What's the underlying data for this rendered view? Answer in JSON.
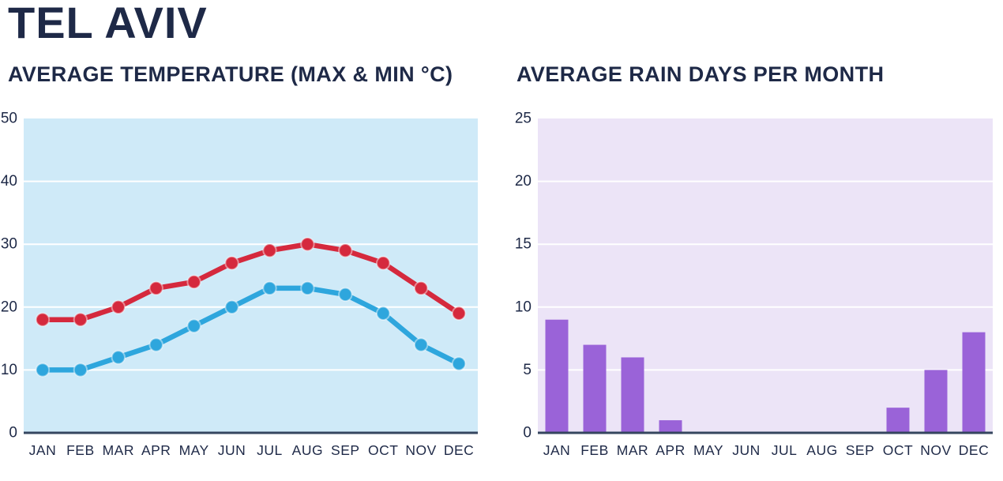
{
  "page": {
    "title": "TEL AVIV"
  },
  "colors": {
    "heading": "#1e2947",
    "axis_line": "#35465f",
    "gridline": "#ffffff",
    "temp_max": "#d5293d",
    "temp_min": "#2ea6dd",
    "rain_bar": "#9a63d8",
    "temp_plot_bg": "#cfeaf8",
    "rain_plot_bg": "#ece4f7"
  },
  "chart_data": [
    {
      "type": "line",
      "title": "AVERAGE TEMPERATURE (MAX & MIN °C)",
      "categories": [
        "JAN",
        "FEB",
        "MAR",
        "APR",
        "MAY",
        "JUN",
        "JUL",
        "AUG",
        "SEP",
        "OCT",
        "NOV",
        "DEC"
      ],
      "series": [
        {
          "key": "max",
          "name": "max",
          "color": "#d5293d",
          "values": [
            18,
            18,
            20,
            23,
            24,
            27,
            29,
            30,
            29,
            27,
            23,
            19
          ]
        },
        {
          "key": "min",
          "name": "min",
          "color": "#2ea6dd",
          "values": [
            10,
            10,
            12,
            14,
            17,
            20,
            23,
            23,
            22,
            19,
            14,
            11
          ]
        }
      ],
      "ylim": [
        0,
        50
      ],
      "yticks": [
        0,
        10,
        20,
        30,
        40,
        50
      ],
      "grid": "horizontal",
      "legend": "none",
      "plot_bg": "#cfeaf8"
    },
    {
      "type": "bar",
      "title": "AVERAGE RAIN DAYS PER MONTH",
      "categories": [
        "JAN",
        "FEB",
        "MAR",
        "APR",
        "MAY",
        "JUN",
        "JUL",
        "AUG",
        "SEP",
        "OCT",
        "NOV",
        "DEC"
      ],
      "values": [
        9,
        7,
        6,
        1,
        0,
        0,
        0,
        0,
        0,
        2,
        5,
        8
      ],
      "bar_color": "#9a63d8",
      "ylim": [
        0,
        25
      ],
      "yticks": [
        0,
        5,
        10,
        15,
        20,
        25
      ],
      "grid": "horizontal",
      "legend": "none",
      "plot_bg": "#ece4f7"
    }
  ]
}
